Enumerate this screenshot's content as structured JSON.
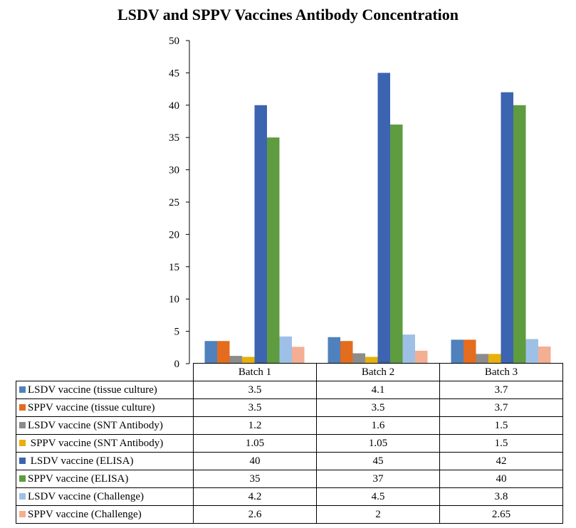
{
  "chart_data": {
    "type": "bar",
    "title": "LSDV and SPPV Vaccines Antibody Concentration",
    "categories": [
      "Batch 1",
      "Batch 2",
      "Batch 3"
    ],
    "ylim": [
      0,
      50
    ],
    "yticks": [
      "0",
      "5",
      "10",
      "15",
      "20",
      "25",
      "30",
      "35",
      "40",
      "45",
      "50"
    ],
    "grid": false,
    "legend": "data-table-below",
    "series": [
      {
        "name": "LSDV vaccine (tissue culture)",
        "values": [
          3.5,
          4.1,
          3.7
        ],
        "labels": [
          "3.5",
          "4.1",
          "3.7"
        ],
        "color": "#4f81bd"
      },
      {
        "name": "SPPV vaccine (tissue culture)",
        "values": [
          3.5,
          3.5,
          3.7
        ],
        "labels": [
          "3.5",
          "3.5",
          "3.7"
        ],
        "color": "#e36c1f"
      },
      {
        "name": "LSDV vaccine (SNT Antibody)",
        "values": [
          1.2,
          1.6,
          1.5
        ],
        "labels": [
          "1.2",
          "1.6",
          "1.5"
        ],
        "color": "#8c8c8c"
      },
      {
        "name": " SPPV vaccine (SNT Antibody)",
        "values": [
          1.05,
          1.05,
          1.5
        ],
        "labels": [
          "1.05",
          "1.05",
          "1.5"
        ],
        "color": "#e8b00a"
      },
      {
        "name": " LSDV vaccine (ELISA)",
        "values": [
          40,
          45,
          42
        ],
        "labels": [
          "40",
          "45",
          "42"
        ],
        "color": "#3c64b0"
      },
      {
        "name": "SPPV vaccine (ELISA)",
        "values": [
          35,
          37,
          40
        ],
        "labels": [
          "35",
          "37",
          "40"
        ],
        "color": "#5e9c3f"
      },
      {
        "name": "LSDV vaccine (Challenge)",
        "values": [
          4.2,
          4.5,
          3.8
        ],
        "labels": [
          "4.2",
          "4.5",
          "3.8"
        ],
        "color": "#9ec0e6"
      },
      {
        "name": "SPPV vaccine (Challenge)",
        "values": [
          2.6,
          2,
          2.65
        ],
        "labels": [
          "2.6",
          "2",
          "2.65"
        ],
        "color": "#f4ae93"
      }
    ]
  }
}
